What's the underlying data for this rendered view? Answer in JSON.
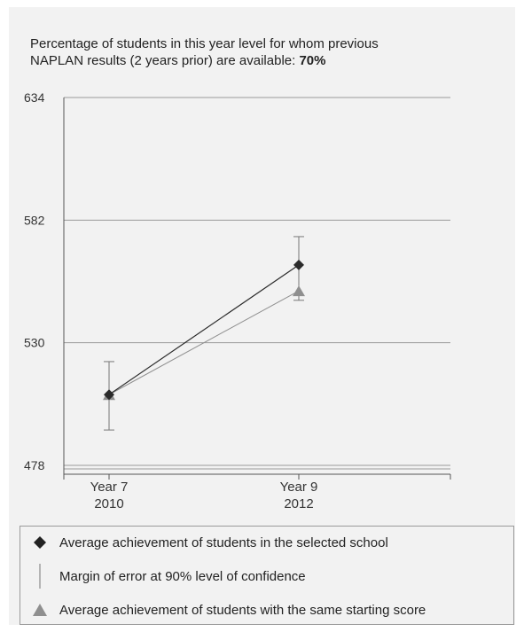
{
  "header": {
    "line1": "Percentage of students in this year level for whom previous",
    "line2_prefix": "NAPLAN results (2 years prior) are available:",
    "line2_value": "70%"
  },
  "chart_data": {
    "type": "line",
    "categories": [
      {
        "line1": "Year 7",
        "line2": "2010"
      },
      {
        "line1": "Year 9",
        "line2": "2012"
      }
    ],
    "y_ticks": [
      "634",
      "582",
      "530",
      "478"
    ],
    "ylim": [
      478,
      634
    ],
    "grid": true,
    "legend_position": "bottom",
    "series": [
      {
        "key": "school",
        "marker": "diamond",
        "color": "#2b2b2b",
        "values": [
          508,
          563
        ],
        "error": {
          "lower": [
            493,
            548
          ],
          "upper": [
            522,
            575
          ]
        }
      },
      {
        "key": "same_start",
        "marker": "triangle",
        "color": "#8f8f8f",
        "values": [
          508,
          552
        ]
      }
    ]
  },
  "legend": {
    "items": [
      {
        "symbol": "diamond-icon",
        "label": "Average achievement of students in the selected school"
      },
      {
        "symbol": "error-bar-icon",
        "label": "Margin of error at 90% level of confidence"
      },
      {
        "symbol": "triangle-icon",
        "label": "Average achievement of students with the same starting score"
      }
    ]
  }
}
